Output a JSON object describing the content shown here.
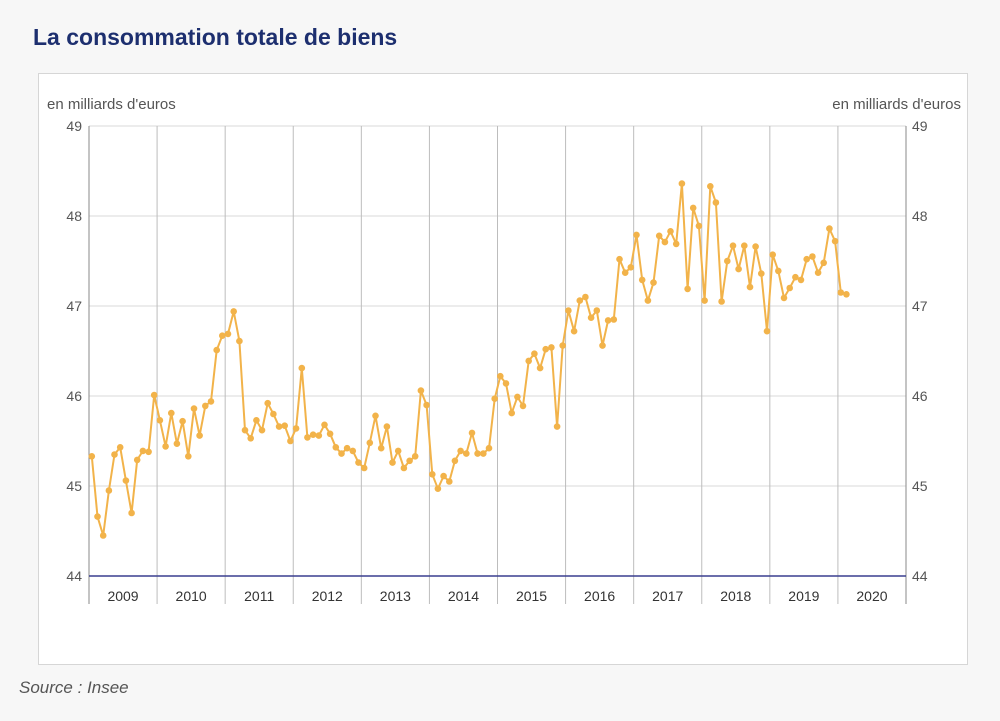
{
  "title": "La consommation totale de biens",
  "source": "Source : Insee",
  "colors": {
    "title": "#1d2f6f",
    "line": "#f2b34a",
    "grid": "#d9d9d9",
    "axis": "#3a3f8f",
    "text": "#555555"
  },
  "chart_data": {
    "type": "line",
    "title": "La consommation totale de biens",
    "ylabel_left": "en milliards d'euros",
    "ylabel_right": "en milliards d'euros",
    "ylim": [
      44,
      49
    ],
    "yticks": [
      44,
      45,
      46,
      47,
      48,
      49
    ],
    "xlim": [
      2009,
      2021
    ],
    "x_tick_labels": [
      "2009",
      "2010",
      "2011",
      "2012",
      "2013",
      "2014",
      "2015",
      "2016",
      "2017",
      "2018",
      "2019",
      "2020"
    ],
    "frequency": "monthly",
    "start": "2009-01",
    "grid": true,
    "legend": "none",
    "series": [
      {
        "values": [
          45.33,
          44.66,
          44.45,
          44.95,
          45.35,
          45.43,
          45.06,
          44.7,
          45.29,
          45.39,
          45.38,
          46.01,
          45.73,
          45.44,
          45.81,
          45.47,
          45.72,
          45.33,
          45.86,
          45.56,
          45.89,
          45.94,
          46.51,
          46.67,
          46.69,
          46.94,
          46.61,
          45.62,
          45.53,
          45.73,
          45.62,
          45.92,
          45.8,
          45.66,
          45.67,
          45.5,
          45.64,
          46.31,
          45.54,
          45.57,
          45.56,
          45.68,
          45.58,
          45.43,
          45.36,
          45.42,
          45.39,
          45.26,
          45.2,
          45.48,
          45.78,
          45.42,
          45.66,
          45.26,
          45.39,
          45.2,
          45.28,
          45.33,
          46.06,
          45.9,
          45.13,
          44.97,
          45.11,
          45.05,
          45.28,
          45.39,
          45.36,
          45.59,
          45.36,
          45.36,
          45.42,
          45.97,
          46.22,
          46.14,
          45.81,
          45.99,
          45.89,
          46.39,
          46.47,
          46.31,
          46.52,
          46.54,
          45.66,
          46.56,
          46.95,
          46.72,
          47.06,
          47.1,
          46.87,
          46.95,
          46.56,
          46.84,
          46.85,
          47.52,
          47.37,
          47.43,
          47.79,
          47.29,
          47.06,
          47.26,
          47.78,
          47.71,
          47.83,
          47.69,
          48.36,
          47.19,
          48.09,
          47.89,
          47.06,
          48.33,
          48.15,
          47.05,
          47.5,
          47.67,
          47.41,
          47.67,
          47.21,
          47.66,
          47.36,
          46.72,
          47.57,
          47.39,
          47.09,
          47.2,
          47.32,
          47.29,
          47.52,
          47.55,
          47.37,
          47.48,
          47.86,
          47.72,
          47.15,
          47.13
        ]
      }
    ]
  }
}
